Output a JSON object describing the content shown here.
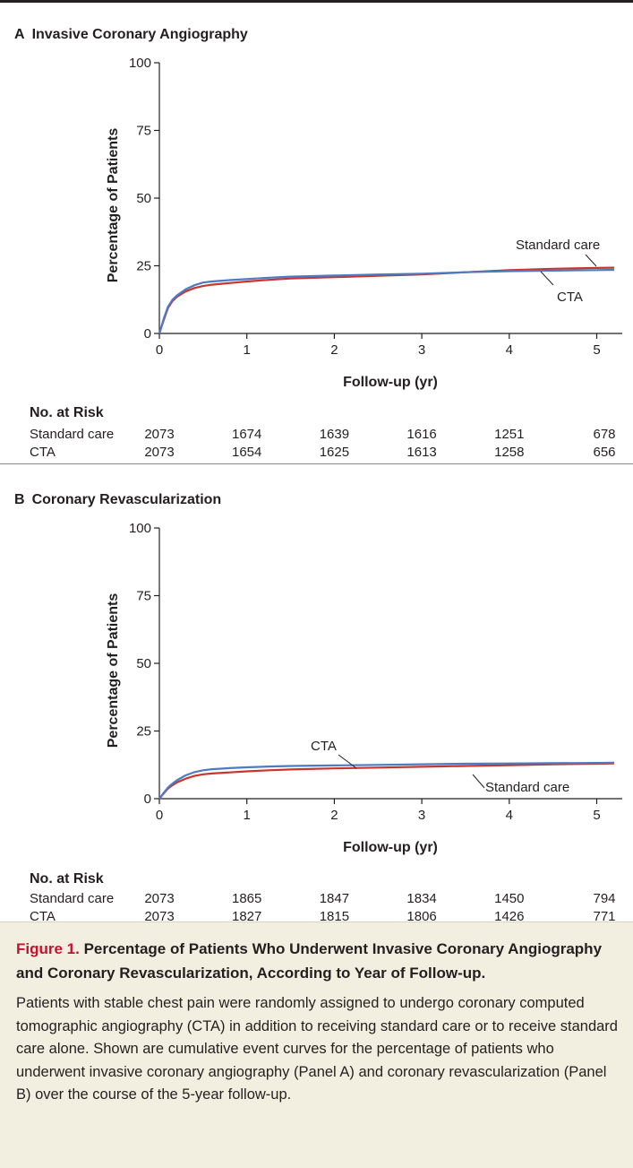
{
  "panels": [
    {
      "letter": "A",
      "title": "Invasive Coronary Angiography",
      "risk": {
        "header": "No. at Risk",
        "rows": [
          {
            "label": "Standard care",
            "values": [
              "2073",
              "1674",
              "1639",
              "1616",
              "1251",
              "678"
            ]
          },
          {
            "label": "CTA",
            "values": [
              "2073",
              "1654",
              "1625",
              "1613",
              "1258",
              "656"
            ]
          }
        ]
      }
    },
    {
      "letter": "B",
      "title": "Coronary Revascularization",
      "risk": {
        "header": "No. at Risk",
        "rows": [
          {
            "label": "Standard care",
            "values": [
              "2073",
              "1865",
              "1847",
              "1834",
              "1450",
              "794"
            ]
          },
          {
            "label": "CTA",
            "values": [
              "2073",
              "1827",
              "1815",
              "1806",
              "1426",
              "771"
            ]
          }
        ]
      }
    }
  ],
  "chart_data": [
    {
      "type": "line",
      "title": "Invasive Coronary Angiography",
      "xlabel": "Follow-up (yr)",
      "ylabel": "Percentage of Patients",
      "xlim": [
        0,
        5.2
      ],
      "ylim": [
        0,
        100
      ],
      "xticks": [
        "0",
        "1",
        "2",
        "3",
        "4",
        "5"
      ],
      "yticks": [
        "0",
        "25",
        "50",
        "75",
        "100"
      ],
      "grid": false,
      "series": [
        {
          "name": "Standard care",
          "color": "#c8362b",
          "x": [
            0,
            0.05,
            0.1,
            0.15,
            0.2,
            0.3,
            0.4,
            0.5,
            0.6,
            0.8,
            1.0,
            1.25,
            1.5,
            2.0,
            2.5,
            3.0,
            3.5,
            4.0,
            4.5,
            5.0,
            5.2
          ],
          "y": [
            0,
            5,
            9.5,
            12,
            13.5,
            15.5,
            16.8,
            17.5,
            18,
            18.6,
            19.2,
            19.8,
            20.3,
            20.8,
            21.3,
            21.8,
            22.6,
            23.4,
            23.9,
            24.2,
            24.3
          ]
        },
        {
          "name": "CTA",
          "color": "#4b7bc4",
          "x": [
            0,
            0.05,
            0.1,
            0.15,
            0.2,
            0.3,
            0.4,
            0.5,
            0.6,
            0.8,
            1.0,
            1.25,
            1.5,
            2.0,
            2.5,
            3.0,
            3.5,
            4.0,
            4.5,
            5.0,
            5.2
          ],
          "y": [
            0,
            5.5,
            10,
            12.5,
            14,
            16.3,
            17.8,
            18.8,
            19.2,
            19.7,
            20.1,
            20.6,
            21,
            21.4,
            21.8,
            22.1,
            22.6,
            23,
            23.2,
            23.4,
            23.5
          ]
        }
      ],
      "annotations": [
        "Standard care",
        "CTA"
      ]
    },
    {
      "type": "line",
      "title": "Coronary Revascularization",
      "xlabel": "Follow-up (yr)",
      "ylabel": "Percentage of Patients",
      "xlim": [
        0,
        5.2
      ],
      "ylim": [
        0,
        100
      ],
      "xticks": [
        "0",
        "1",
        "2",
        "3",
        "4",
        "5"
      ],
      "yticks": [
        "0",
        "25",
        "50",
        "75",
        "100"
      ],
      "grid": false,
      "series": [
        {
          "name": "Standard care",
          "color": "#c8362b",
          "x": [
            0,
            0.05,
            0.1,
            0.15,
            0.2,
            0.3,
            0.4,
            0.5,
            0.6,
            0.8,
            1.0,
            1.25,
            1.5,
            2.0,
            2.5,
            3.0,
            3.5,
            4.0,
            4.5,
            5.0,
            5.2
          ],
          "y": [
            0,
            2,
            3.8,
            5,
            6,
            7.4,
            8.4,
            9,
            9.3,
            9.7,
            10.1,
            10.5,
            10.8,
            11.2,
            11.5,
            11.8,
            12.1,
            12.4,
            12.7,
            12.9,
            13
          ]
        },
        {
          "name": "CTA",
          "color": "#4b7bc4",
          "x": [
            0,
            0.05,
            0.1,
            0.15,
            0.2,
            0.3,
            0.4,
            0.5,
            0.6,
            0.8,
            1.0,
            1.25,
            1.5,
            2.0,
            2.5,
            3.0,
            3.5,
            4.0,
            4.5,
            5.0,
            5.2
          ],
          "y": [
            0,
            2.2,
            4.2,
            5.6,
            6.8,
            8.6,
            9.8,
            10.5,
            10.9,
            11.3,
            11.6,
            11.9,
            12.1,
            12.3,
            12.5,
            12.7,
            12.9,
            13,
            13.1,
            13.2,
            13.3
          ]
        }
      ],
      "annotations": [
        "CTA",
        "Standard care"
      ]
    }
  ],
  "caption": {
    "figure_label": "Figure 1.",
    "title": "Percentage of Patients Who Underwent Invasive Coronary Angiography and Coronary Revascularization, According to Year of Follow-up.",
    "body": "Patients with stable chest pain were randomly assigned to undergo coronary computed tomographic angiography (CTA) in addition to receiving standard care or to receive standard care alone. Shown are cumulative event curves for the percentage of patients who underwent invasive coronary angiography (Panel A) and coronary revascularization (Panel B) over the course of the 5-year follow-up."
  }
}
